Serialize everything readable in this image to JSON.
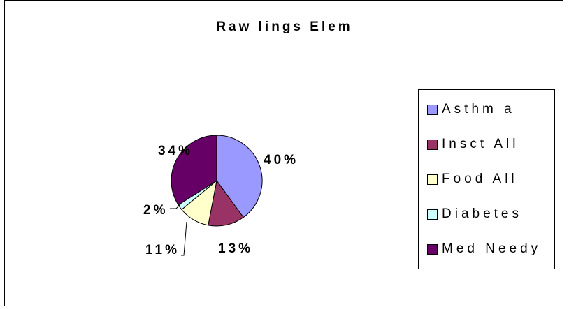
{
  "chart_data": {
    "type": "pie",
    "title": "Raw lings Elem",
    "categories": [
      "Asthm a",
      "Insct All",
      "Food All",
      "Diabetes",
      "Med Needy"
    ],
    "values": [
      40,
      13,
      11,
      2,
      34
    ],
    "data_labels": [
      "40%",
      "13%",
      "11%",
      "2%",
      "34%"
    ],
    "colors": [
      "#9999ff",
      "#993366",
      "#ffffcc",
      "#ccffff",
      "#660066"
    ],
    "legend_position": "right"
  }
}
